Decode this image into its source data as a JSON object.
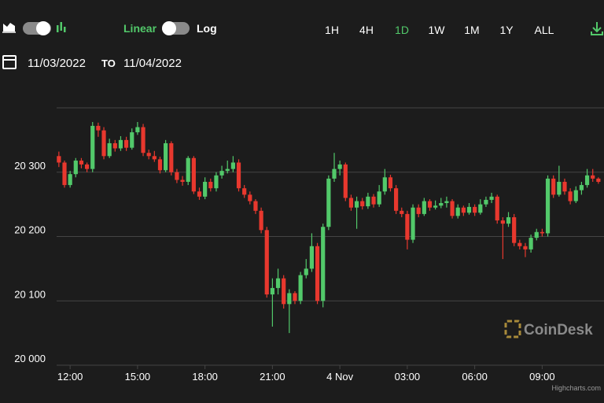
{
  "toolbar": {
    "scale_linear": "Linear",
    "scale_log": "Log",
    "ranges": [
      "1H",
      "4H",
      "1D",
      "1W",
      "1M",
      "1Y",
      "ALL"
    ],
    "active_range": 2,
    "date_from": "11/03/2022",
    "date_to_label": "TO",
    "date_to": "11/04/2022"
  },
  "watermark": "CoinDesk",
  "credits": "Highcharts.com",
  "chart_data": {
    "type": "candlestick",
    "up_color": "#52c96a",
    "down_color": "#e8382e",
    "grid": true,
    "xlim": [
      11.4,
      35.75
    ],
    "ylim": [
      20000,
      20400
    ],
    "xticks": [
      {
        "value": 12,
        "label": "12:00"
      },
      {
        "value": 15,
        "label": "15:00"
      },
      {
        "value": 18,
        "label": "18:00"
      },
      {
        "value": 21,
        "label": "21:00"
      },
      {
        "value": 24,
        "label": "4 Nov"
      },
      {
        "value": 27,
        "label": "03:00"
      },
      {
        "value": 30,
        "label": "06:00"
      },
      {
        "value": 33,
        "label": "09:00"
      }
    ],
    "yticks": [
      {
        "value": 20000,
        "label": "20 000"
      },
      {
        "value": 20100,
        "label": "20 100"
      },
      {
        "value": 20200,
        "label": "20 200"
      },
      {
        "value": 20300,
        "label": "20 300"
      }
    ],
    "x": [
      11.5,
      11.75,
      12,
      12.25,
      12.5,
      12.75,
      13,
      13.25,
      13.5,
      13.75,
      14,
      14.25,
      14.5,
      14.75,
      15,
      15.25,
      15.5,
      15.75,
      16,
      16.25,
      16.5,
      16.75,
      17,
      17.25,
      17.5,
      17.75,
      18,
      18.25,
      18.5,
      18.75,
      19,
      19.25,
      19.5,
      19.75,
      20,
      20.25,
      20.5,
      20.75,
      21,
      21.25,
      21.5,
      21.75,
      22,
      22.25,
      22.5,
      22.75,
      23,
      23.25,
      23.5,
      23.75,
      24,
      24.25,
      24.5,
      24.75,
      25,
      25.25,
      25.5,
      25.75,
      26,
      26.25,
      26.5,
      26.75,
      27,
      27.25,
      27.5,
      27.75,
      28,
      28.25,
      28.5,
      28.75,
      29,
      29.25,
      29.5,
      29.75,
      30,
      30.25,
      30.5,
      30.75,
      31,
      31.25,
      31.5,
      31.75,
      32,
      32.25,
      32.5,
      32.75,
      33,
      33.25,
      33.5,
      33.75,
      34,
      34.25,
      34.5,
      34.75,
      35,
      35.25,
      35.5
    ],
    "open": [
      20325,
      20315,
      20280,
      20297,
      20318,
      20312,
      20305,
      20372,
      20365,
      20325,
      20345,
      20337,
      20350,
      20338,
      20362,
      20370,
      20330,
      20325,
      20320,
      20303,
      20345,
      20300,
      20288,
      20285,
      20322,
      20270,
      20262,
      20285,
      20275,
      20295,
      20302,
      20305,
      20315,
      20275,
      20265,
      20255,
      20240,
      20210,
      20110,
      20120,
      20135,
      20095,
      20112,
      20100,
      20140,
      20150,
      20185,
      20100,
      20215,
      20290,
      20305,
      20312,
      20260,
      20245,
      20255,
      20247,
      20262,
      20250,
      20270,
      20292,
      20275,
      20240,
      20235,
      20195,
      20245,
      20235,
      20255,
      20245,
      20248,
      20252,
      20255,
      20232,
      20245,
      20237,
      20246,
      20237,
      20250,
      20257,
      20262,
      20225,
      20220,
      20230,
      20190,
      20185,
      20180,
      20198,
      20207,
      20205,
      20290,
      20265,
      20285,
      20270,
      20255,
      20272,
      20280,
      20295,
      20290
    ],
    "high": [
      20332,
      20318,
      20302,
      20322,
      20322,
      20315,
      20378,
      20377,
      20370,
      20352,
      20350,
      20356,
      20355,
      20368,
      20378,
      20375,
      20335,
      20333,
      20324,
      20350,
      20348,
      20305,
      20294,
      20325,
      20325,
      20276,
      20292,
      20290,
      20300,
      20310,
      20318,
      20325,
      20320,
      20280,
      20270,
      20258,
      20245,
      20215,
      20135,
      20150,
      20140,
      20118,
      20115,
      20145,
      20165,
      20205,
      20190,
      20220,
      20295,
      20330,
      20318,
      20315,
      20265,
      20262,
      20260,
      20268,
      20266,
      20280,
      20305,
      20296,
      20280,
      20245,
      20240,
      20250,
      20250,
      20260,
      20258,
      20256,
      20260,
      20262,
      20258,
      20250,
      20248,
      20252,
      20250,
      20258,
      20262,
      20268,
      20265,
      20230,
      20238,
      20235,
      20195,
      20190,
      20203,
      20212,
      20212,
      20295,
      20295,
      20310,
      20290,
      20275,
      20278,
      20285,
      20305,
      20305,
      20292
    ],
    "low": [
      20308,
      20276,
      20276,
      20292,
      20306,
      20300,
      20300,
      20355,
      20320,
      20322,
      20332,
      20333,
      20333,
      20335,
      20358,
      20325,
      20320,
      20316,
      20298,
      20300,
      20295,
      20283,
      20279,
      20280,
      20266,
      20257,
      20258,
      20270,
      20270,
      20290,
      20298,
      20300,
      20270,
      20260,
      20250,
      20235,
      20205,
      20105,
      20060,
      20110,
      20088,
      20050,
      20095,
      20095,
      20135,
      20145,
      20095,
      20090,
      20210,
      20285,
      20295,
      20255,
      20240,
      20212,
      20242,
      20243,
      20245,
      20246,
      20265,
      20270,
      20235,
      20230,
      20180,
      20190,
      20230,
      20232,
      20240,
      20242,
      20244,
      20245,
      20228,
      20228,
      20232,
      20234,
      20232,
      20234,
      20246,
      20252,
      20220,
      20165,
      20215,
      20185,
      20180,
      20168,
      20175,
      20194,
      20200,
      20200,
      20260,
      20262,
      20265,
      20250,
      20252,
      20265,
      20276,
      20285,
      20282
    ],
    "close": [
      20315,
      20280,
      20297,
      20318,
      20312,
      20305,
      20372,
      20365,
      20325,
      20345,
      20337,
      20350,
      20338,
      20362,
      20370,
      20330,
      20325,
      20320,
      20303,
      20345,
      20300,
      20288,
      20285,
      20322,
      20270,
      20262,
      20285,
      20275,
      20295,
      20302,
      20305,
      20315,
      20275,
      20265,
      20255,
      20240,
      20210,
      20110,
      20120,
      20135,
      20095,
      20112,
      20100,
      20140,
      20150,
      20185,
      20100,
      20215,
      20290,
      20305,
      20312,
      20260,
      20245,
      20255,
      20247,
      20262,
      20250,
      20270,
      20292,
      20275,
      20240,
      20235,
      20195,
      20245,
      20235,
      20255,
      20245,
      20248,
      20252,
      20255,
      20232,
      20245,
      20237,
      20246,
      20237,
      20250,
      20257,
      20262,
      20225,
      20220,
      20230,
      20190,
      20185,
      20180,
      20198,
      20207,
      20205,
      20290,
      20265,
      20285,
      20270,
      20255,
      20272,
      20280,
      20295,
      20290,
      20285
    ]
  }
}
